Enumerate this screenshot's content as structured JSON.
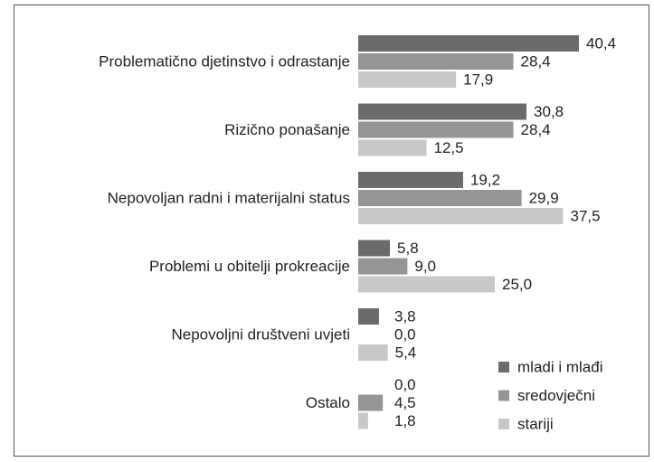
{
  "chart_data": {
    "type": "bar",
    "orientation": "horizontal",
    "categories": [
      "Problematično djetinstvo i odrastanje",
      "Rizično ponašanje",
      "Nepovoljan radni i  materijalni status",
      "Problemi u obitelji prokreacije",
      "Nepovoljni društveni uvjeti",
      "Ostalo"
    ],
    "series": [
      {
        "name": "mladi i mlađi",
        "color": "#6b6b6b",
        "values": [
          40.4,
          30.8,
          19.2,
          5.8,
          3.8,
          0
        ],
        "value_labels": [
          "40,4",
          "30,8",
          "19,2",
          "5,8",
          "3,8",
          "0,0"
        ]
      },
      {
        "name": "sredovječni",
        "color": "#959595",
        "values": [
          28.4,
          28.4,
          29.9,
          9.0,
          0,
          4.5
        ],
        "value_labels": [
          "28,4",
          "28,4",
          "29,9",
          "9,0",
          "0,0",
          "4,5"
        ]
      },
      {
        "name": "stariji",
        "color": "#c8c8c8",
        "values": [
          17.9,
          12.5,
          37.5,
          25.0,
          5.4,
          1.8
        ],
        "value_labels": [
          "17,9",
          "12,5",
          "37,5",
          "25,0",
          "5,4",
          "1,8"
        ]
      }
    ],
    "legend": "lower right"
  }
}
